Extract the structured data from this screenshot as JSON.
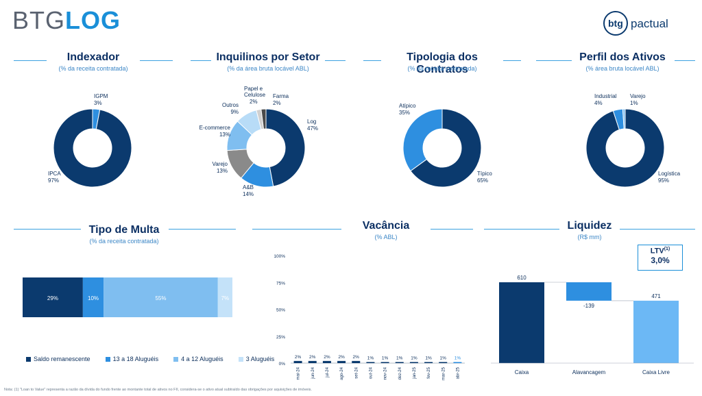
{
  "brand": {
    "left_logo_a": "BTG",
    "left_logo_b": "LOG",
    "right_logo_a": "btg",
    "right_logo_b": "pactual"
  },
  "sections": {
    "indexador": {
      "title": "Indexador",
      "subtitle": "(% da receita contratada)"
    },
    "inquilinos": {
      "title": "Inquilinos por Setor",
      "subtitle": "(% da área bruta locável ABL)"
    },
    "tipologia": {
      "title": "Tipologia dos Contratos",
      "subtitle": "(% da receita contratada)"
    },
    "perfil": {
      "title": "Perfil dos Ativos",
      "subtitle": "(% área bruta locável ABL)"
    },
    "multa": {
      "title": "Tipo de Multa",
      "subtitle": "(% da receita contratada)"
    },
    "vacancia": {
      "title": "Vacância",
      "subtitle": "(% ABL)"
    },
    "liquidez": {
      "title": "Liquidez",
      "subtitle": "(R$ mm)"
    }
  },
  "ltv": {
    "label": "LTV",
    "sup": "(1)",
    "value": "3,0%"
  },
  "footnote": "Nota: (1) \"Loan to Value\" representa a razão da dívida do fundo frente ao montante total de ativos no FII, considera-se o ativo atual subtraído das obrigações por aquisições de imóveis.",
  "chart_data": [
    {
      "type": "pie",
      "title": "Indexador",
      "slices": [
        {
          "name": "IGPM",
          "value": 3,
          "label": "3%",
          "color": "#2e8fe0"
        },
        {
          "name": "IPCA",
          "value": 97,
          "label": "97%",
          "color": "#0b3a6e"
        }
      ]
    },
    {
      "type": "pie",
      "title": "Inquilinos por Setor",
      "slices": [
        {
          "name": "Log",
          "value": 47,
          "label": "47%",
          "color": "#0b3a6e"
        },
        {
          "name": "A&B",
          "value": 14,
          "label": "14%",
          "color": "#2e8fe0"
        },
        {
          "name": "Varejo",
          "value": 13,
          "label": "13%",
          "color": "#8a8a8a"
        },
        {
          "name": "E-commerce",
          "value": 13,
          "label": "13%",
          "color": "#7fbef0"
        },
        {
          "name": "Outros",
          "value": 9,
          "label": "9%",
          "color": "#b8dcf7"
        },
        {
          "name": "Papel e Celulose",
          "value": 2,
          "label": "2%",
          "color": "#d0d0d0"
        },
        {
          "name": "Farma",
          "value": 2,
          "label": "2%",
          "color": "#4a4a4a"
        }
      ]
    },
    {
      "type": "pie",
      "title": "Tipologia dos Contratos",
      "slices": [
        {
          "name": "Típico",
          "value": 65,
          "label": "65%",
          "color": "#0b3a6e"
        },
        {
          "name": "Atípico",
          "value": 35,
          "label": "35%",
          "color": "#2e8fe0"
        }
      ]
    },
    {
      "type": "pie",
      "title": "Perfil dos Ativos",
      "slices": [
        {
          "name": "Logística",
          "value": 95,
          "label": "95%",
          "color": "#0b3a6e"
        },
        {
          "name": "Industrial",
          "value": 4,
          "label": "4%",
          "color": "#2e8fe0"
        },
        {
          "name": "Varejo",
          "value": 1,
          "label": "1%",
          "color": "#7fbef0"
        }
      ]
    },
    {
      "type": "bar",
      "title": "Tipo de Multa",
      "orientation": "horizontal-stacked",
      "series": [
        {
          "name": "Saldo remanescente",
          "value": 29,
          "label": "29%",
          "color": "#0b3a6e"
        },
        {
          "name": "13 a 18 Aluguéis",
          "value": 10,
          "label": "10%",
          "color": "#2e8fe0"
        },
        {
          "name": "4 a 12 Aluguéis",
          "value": 55,
          "label": "55%",
          "color": "#7fbef0"
        },
        {
          "name": "3 Aluguéis",
          "value": 7,
          "label": "7%",
          "color": "#c4e2f9"
        }
      ]
    },
    {
      "type": "bar",
      "title": "Vacância",
      "categories": [
        "mai-24",
        "jun-24",
        "jul-24",
        "ago-24",
        "set-24",
        "out-24",
        "nov-24",
        "dez-24",
        "jan-25",
        "fev-25",
        "mar-25",
        "abr-25"
      ],
      "values": [
        2,
        2,
        2,
        2,
        2,
        1,
        1,
        1,
        1,
        1,
        1,
        1
      ],
      "labels": [
        "2%",
        "2%",
        "2%",
        "2%",
        "2%",
        "1%",
        "1%",
        "1%",
        "1%",
        "1%",
        "1%",
        "1%"
      ],
      "yticks": [
        "0%",
        "25%",
        "50%",
        "75%",
        "100%"
      ],
      "ylim": [
        0,
        100
      ],
      "colors": {
        "bar": "#0b3a6e",
        "last": "#2e8fe0"
      }
    },
    {
      "type": "bar",
      "title": "Liquidez",
      "orientation": "waterfall",
      "categories": [
        "Caixa",
        "Alavancagem",
        "Caixa Livre"
      ],
      "values": [
        610,
        -139,
        471
      ],
      "labels": [
        "610",
        "-139",
        "471"
      ],
      "colors": [
        "#0b3a6e",
        "#2e8fe0",
        "#6cb8f5"
      ]
    }
  ]
}
